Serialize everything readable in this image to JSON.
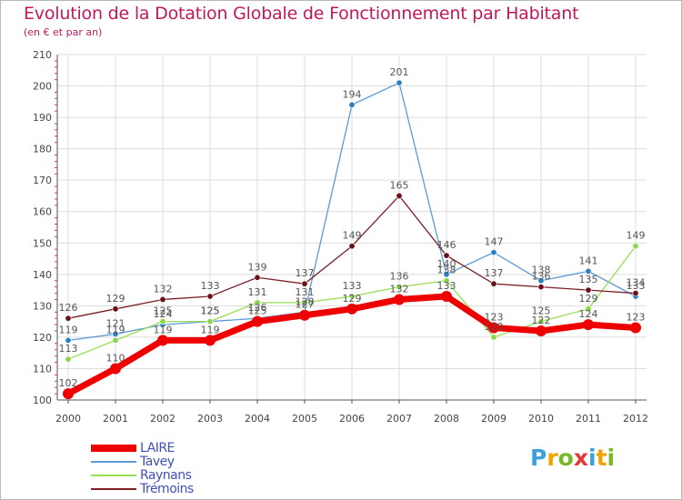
{
  "title": "Evolution de la Dotation Globale de Fonctionnement par Habitant",
  "subtitle": "(en € et par an)",
  "logo": {
    "letters": [
      "P",
      "r",
      "o",
      "x",
      "i",
      "t",
      "i"
    ],
    "colors": [
      "#3aa1dc",
      "#f2a300",
      "#79b829",
      "#e53935",
      "#3aa1dc",
      "#f2a300",
      "#79b829"
    ]
  },
  "chart_data": {
    "type": "line",
    "title": "Evolution de la Dotation Globale de Fonctionnement par Habitant",
    "subtitle": "(en € et par an)",
    "xlabel": "",
    "ylabel": "",
    "x": [
      "2000",
      "2001",
      "2002",
      "2003",
      "2004",
      "2005",
      "2006",
      "2007",
      "2008",
      "2009",
      "2010",
      "2011",
      "2012"
    ],
    "ylim": [
      100,
      210
    ],
    "yticks": [
      "100",
      "110",
      "120",
      "130",
      "140",
      "150",
      "160",
      "170",
      "180",
      "190",
      "200",
      "210"
    ],
    "grid": true,
    "legend_position": "bottom-left",
    "series": [
      {
        "name": "LAIRE",
        "color": "#ee0000",
        "values": [
          102,
          110,
          119,
          119,
          125,
          127,
          129,
          132,
          133,
          123,
          122,
          124,
          123
        ],
        "labels": [
          "102",
          "110",
          "119",
          "119",
          "125",
          "127",
          "129",
          "132",
          "133",
          "123",
          "122",
          "124",
          "123"
        ]
      },
      {
        "name": "Tavey",
        "color": "#5b9bd5",
        "values": [
          119,
          121,
          124,
          125,
          126,
          128,
          194,
          201,
          140,
          147,
          138,
          141,
          133
        ],
        "labels": [
          "119",
          "121",
          "124",
          "125",
          "126",
          "128",
          "194",
          "201",
          "140",
          "147",
          "138",
          "141",
          "133"
        ]
      },
      {
        "name": "Raynans",
        "color": "#99dd55",
        "values": [
          113,
          119,
          125,
          125,
          131,
          131,
          133,
          136,
          138,
          120,
          125,
          129,
          149
        ],
        "labels": [
          "113",
          "119",
          "125",
          "125",
          "131",
          "131",
          "133",
          "136",
          "138",
          "120",
          "125",
          "129",
          "149"
        ]
      },
      {
        "name": "Trémoins",
        "color": "#7a1f26",
        "values": [
          126,
          129,
          132,
          133,
          139,
          137,
          149,
          165,
          146,
          137,
          136,
          135,
          134
        ],
        "labels": [
          "126",
          "129",
          "132",
          "133",
          "139",
          "137",
          "149",
          "165",
          "146",
          "137",
          "136",
          "135",
          "134"
        ]
      }
    ]
  }
}
